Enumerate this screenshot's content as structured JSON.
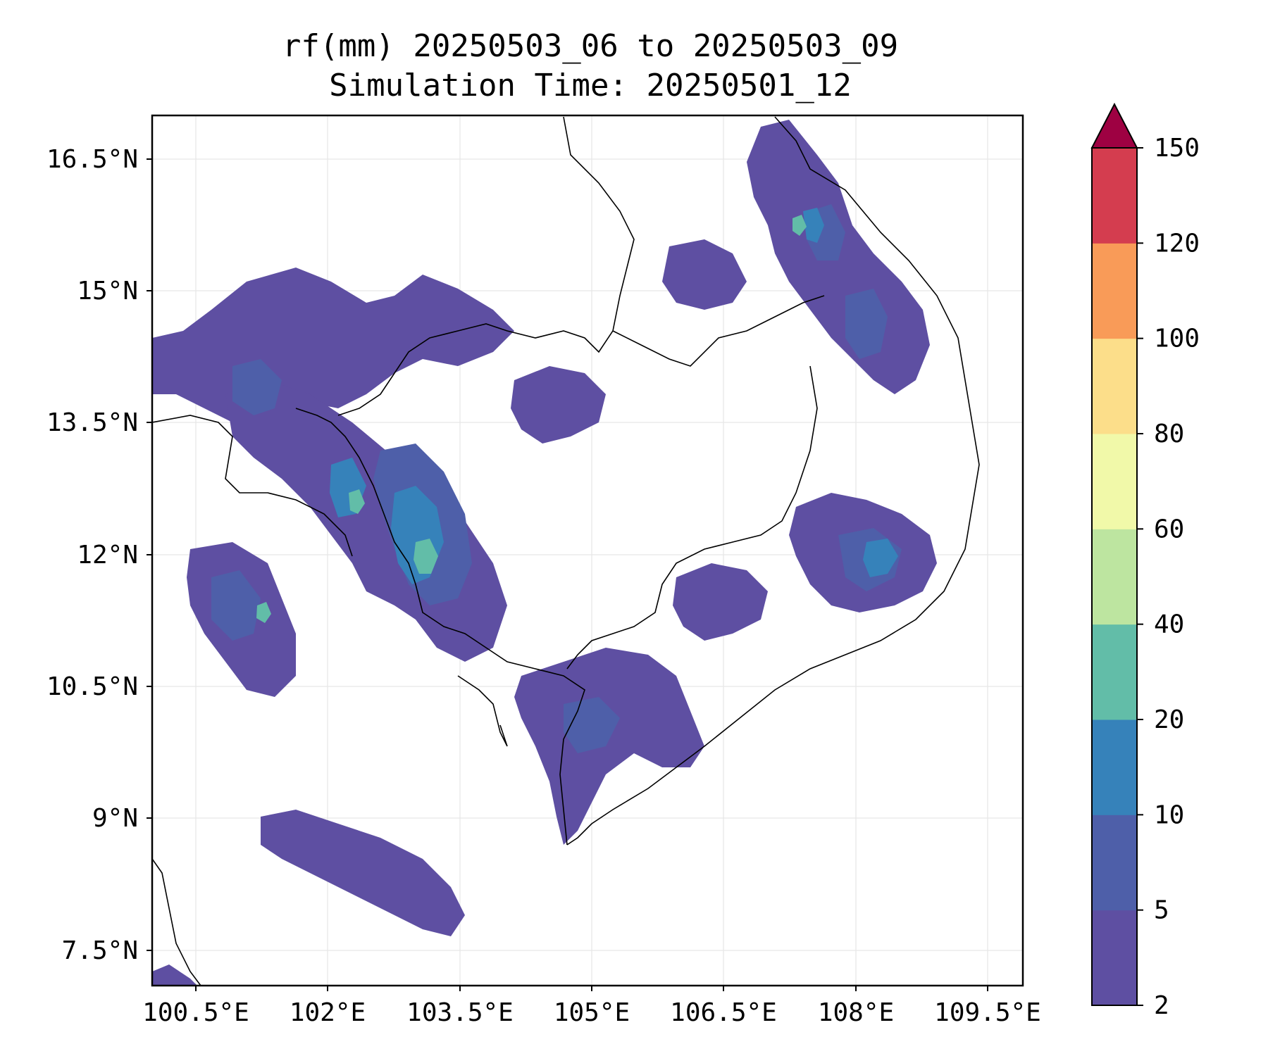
{
  "title": {
    "line1": "rf(mm) 20250503_06 to 20250503_09",
    "line2": "Simulation Time: 20250501_12"
  },
  "map": {
    "lon_range": [
      100.0,
      109.9
    ],
    "lat_range": [
      7.0,
      16.9
    ],
    "lon_ticks": [
      "100.5°E",
      "102°E",
      "103.5°E",
      "105°E",
      "106.5°E",
      "108°E",
      "109.5°E"
    ],
    "lat_ticks": [
      "16.5°N",
      "15°N",
      "13.5°N",
      "12°N",
      "10.5°N",
      "9°N",
      "7.5°N"
    ],
    "gridlines": true
  },
  "colorbar": {
    "levels": [
      "2",
      "5",
      "10",
      "20",
      "40",
      "60",
      "80",
      "100",
      "120",
      "150"
    ],
    "colors": [
      "#5e4fa2",
      "#4e5fa9",
      "#3682ba",
      "#62bda8",
      "#bde5a0",
      "#f1f9a9",
      "#fcde8a",
      "#f99b58",
      "#d43d4f",
      "#9e0142"
    ],
    "extend": "max"
  }
}
